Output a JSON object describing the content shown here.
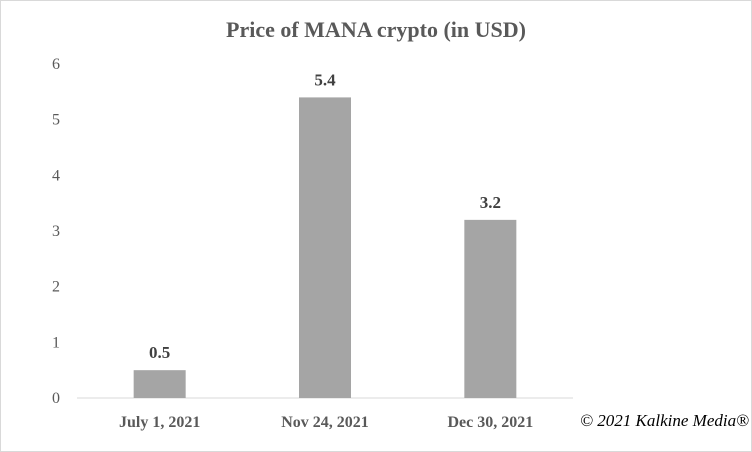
{
  "chart_data": {
    "type": "bar",
    "title": "Price of MANA crypto (in USD)",
    "categories": [
      "July 1, 2021",
      "Nov 24, 2021",
      "Dec 30, 2021"
    ],
    "values": [
      0.5,
      5.4,
      3.2
    ],
    "data_labels": [
      "0.5",
      "5.4",
      "3.2"
    ],
    "xlabel": "",
    "ylabel": "",
    "ylim": [
      0,
      6
    ],
    "yticks": [
      0,
      1,
      2,
      3,
      4,
      5,
      6
    ],
    "grid": false,
    "bar_color": "#a5a5a5"
  },
  "watermark": "© 2021 Kalkine Media®"
}
